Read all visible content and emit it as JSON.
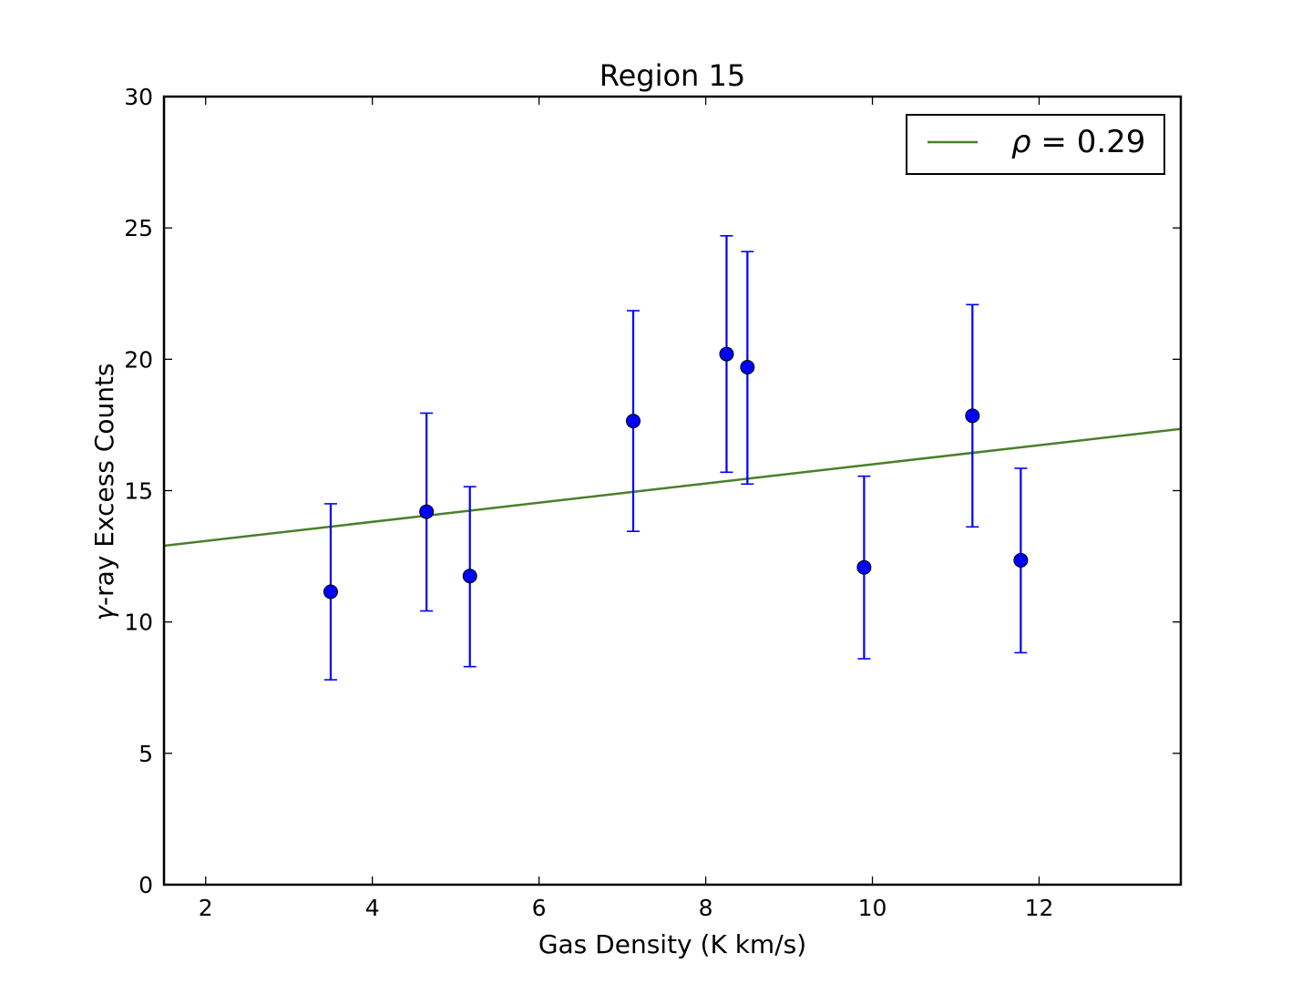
{
  "chart_data": {
    "type": "scatter",
    "title": "Region 15",
    "xlabel": "Gas Density (K km/s)",
    "ylabel_symbol": "γ",
    "ylabel": "-ray Excess Counts",
    "xlim": [
      1.5,
      13.7
    ],
    "ylim": [
      0,
      30
    ],
    "xticks": [
      2,
      4,
      6,
      8,
      10,
      12
    ],
    "yticks": [
      0,
      5,
      10,
      15,
      20,
      25,
      30
    ],
    "grid": false,
    "legend_position": "top-right",
    "series": [
      {
        "kind": "errorbar",
        "color": "#0000ff",
        "x": [
          3.5,
          4.65,
          5.17,
          7.13,
          8.25,
          8.5,
          9.9,
          11.2,
          11.78
        ],
        "y": [
          11.15,
          14.2,
          11.75,
          17.65,
          20.2,
          19.7,
          12.08,
          17.85,
          12.35
        ],
        "yerr_low": [
          7.8,
          10.42,
          8.3,
          13.45,
          15.7,
          15.25,
          8.6,
          13.62,
          8.83
        ],
        "yerr_high": [
          14.5,
          17.95,
          15.15,
          21.85,
          24.7,
          24.1,
          15.55,
          22.08,
          15.85
        ]
      },
      {
        "kind": "line",
        "color": "#4a7f2a",
        "legend_symbol": "ρ",
        "legend_text": " = 0.29",
        "x": [
          1.5,
          13.7
        ],
        "y": [
          12.9,
          17.35
        ]
      }
    ]
  }
}
